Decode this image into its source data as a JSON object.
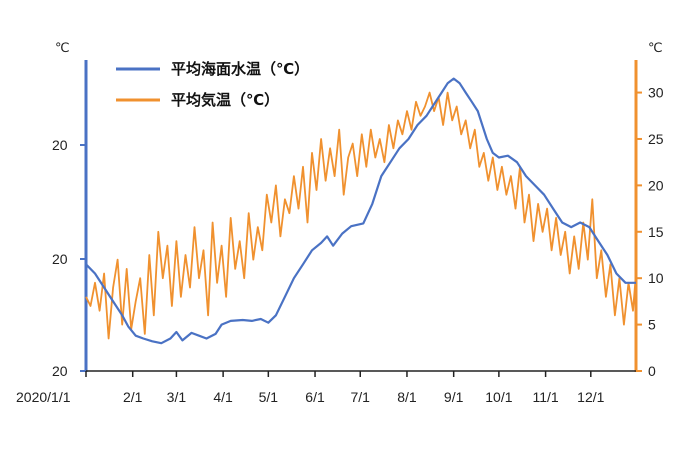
{
  "chart_data": {
    "type": "line",
    "title": "",
    "x_start": "2020/1/1",
    "x_tick_labels": [
      "2020/1/1",
      "2/1",
      "3/1",
      "4/1",
      "5/1",
      "6/1",
      "7/1",
      "8/1",
      "9/1",
      "10/1",
      "11/1",
      "12/1"
    ],
    "x_tick_days": [
      0,
      31,
      60,
      91,
      121,
      152,
      182,
      213,
      244,
      274,
      305,
      335
    ],
    "left_axis": {
      "unit": "℃",
      "tick_labels": [
        "20",
        "20",
        "20"
      ],
      "color": "#4a72c4"
    },
    "right_axis": {
      "unit": "℃",
      "ticks": [
        0,
        5,
        10,
        15,
        20,
        25,
        30
      ],
      "ylim": [
        0,
        32
      ],
      "color": "#f0912f"
    },
    "legend": {
      "placement": "top-left",
      "entries": [
        "平均海面水温（℃）",
        "平均気温（℃）"
      ]
    },
    "grid": false,
    "series": [
      {
        "name": "平均海面水温（℃）",
        "color": "#4a72c4",
        "axis": "right",
        "x_days": [
          0,
          6,
          12,
          18,
          24,
          28,
          33,
          38,
          44,
          50,
          56,
          60,
          64,
          70,
          75,
          80,
          86,
          90,
          96,
          104,
          110,
          116,
          121,
          126,
          132,
          138,
          144,
          150,
          156,
          160,
          164,
          170,
          176,
          184,
          190,
          196,
          202,
          208,
          214,
          220,
          226,
          232,
          236,
          240,
          244,
          248,
          252,
          256,
          260,
          266,
          270,
          274,
          280,
          286,
          292,
          298,
          304,
          310,
          316,
          322,
          328,
          334,
          340,
          346,
          352,
          358,
          365
        ],
        "values": [
          11.5,
          10.5,
          9.0,
          7.5,
          6.0,
          4.8,
          3.8,
          3.5,
          3.2,
          3.0,
          3.5,
          4.2,
          3.3,
          4.1,
          3.8,
          3.5,
          4.0,
          5.0,
          5.4,
          5.5,
          5.4,
          5.6,
          5.2,
          6.0,
          8.0,
          10.0,
          11.5,
          13.0,
          13.8,
          14.5,
          13.5,
          14.8,
          15.6,
          15.9,
          18.0,
          21.0,
          22.5,
          24.0,
          25.0,
          26.5,
          27.5,
          29.0,
          30.0,
          31.0,
          31.5,
          31.0,
          30.0,
          29.0,
          28.0,
          25.0,
          23.5,
          23.0,
          23.2,
          22.5,
          21.0,
          20.0,
          19.0,
          17.5,
          16.0,
          15.5,
          16.0,
          15.5,
          14.0,
          12.5,
          10.5,
          9.5,
          9.5
        ]
      },
      {
        "name": "平均気温（℃）",
        "color": "#f0912f",
        "axis": "right",
        "x_days": [
          0,
          3,
          6,
          9,
          12,
          15,
          18,
          21,
          24,
          27,
          30,
          33,
          36,
          39,
          42,
          45,
          48,
          51,
          54,
          57,
          60,
          63,
          66,
          69,
          72,
          75,
          78,
          81,
          84,
          87,
          90,
          93,
          96,
          99,
          102,
          105,
          108,
          111,
          114,
          117,
          120,
          123,
          126,
          129,
          132,
          135,
          138,
          141,
          144,
          147,
          150,
          153,
          156,
          159,
          162,
          165,
          168,
          171,
          174,
          177,
          180,
          183,
          186,
          189,
          192,
          195,
          198,
          201,
          204,
          207,
          210,
          213,
          216,
          219,
          222,
          225,
          228,
          231,
          234,
          237,
          240,
          243,
          246,
          249,
          252,
          255,
          258,
          261,
          264,
          267,
          270,
          273,
          276,
          279,
          282,
          285,
          288,
          291,
          294,
          297,
          300,
          303,
          306,
          309,
          312,
          315,
          318,
          321,
          324,
          327,
          330,
          333,
          336,
          339,
          342,
          345,
          348,
          351,
          354,
          357,
          360,
          363,
          365
        ],
        "values": [
          8.0,
          7.0,
          9.5,
          6.5,
          10.5,
          3.5,
          9.0,
          12.0,
          5.0,
          11.0,
          4.5,
          7.5,
          10.0,
          4.0,
          12.5,
          6.0,
          15.0,
          10.0,
          13.5,
          7.0,
          14.0,
          8.0,
          12.5,
          9.0,
          15.5,
          10.0,
          13.0,
          6.0,
          16.0,
          9.5,
          13.5,
          8.0,
          16.5,
          11.0,
          14.0,
          10.0,
          17.0,
          12.0,
          15.5,
          13.0,
          19.0,
          16.0,
          20.0,
          14.5,
          18.5,
          17.0,
          21.0,
          17.5,
          22.0,
          16.0,
          23.5,
          19.5,
          25.0,
          20.5,
          24.0,
          21.0,
          26.0,
          19.0,
          23.0,
          24.5,
          21.0,
          25.5,
          22.0,
          26.0,
          23.0,
          25.0,
          22.5,
          26.5,
          24.0,
          27.0,
          25.5,
          28.0,
          26.0,
          29.0,
          27.5,
          28.5,
          30.0,
          28.0,
          29.5,
          26.5,
          30.0,
          27.0,
          28.5,
          25.5,
          27.0,
          24.0,
          26.0,
          22.0,
          23.5,
          20.5,
          23.0,
          19.5,
          22.0,
          19.0,
          21.0,
          17.5,
          22.0,
          16.0,
          19.0,
          14.0,
          18.0,
          15.0,
          17.5,
          13.0,
          16.5,
          12.5,
          15.0,
          10.5,
          14.5,
          11.0,
          16.0,
          12.0,
          18.5,
          10.0,
          13.0,
          8.0,
          11.5,
          6.0,
          10.0,
          5.0,
          9.5,
          6.5,
          10.5
        ]
      }
    ]
  }
}
